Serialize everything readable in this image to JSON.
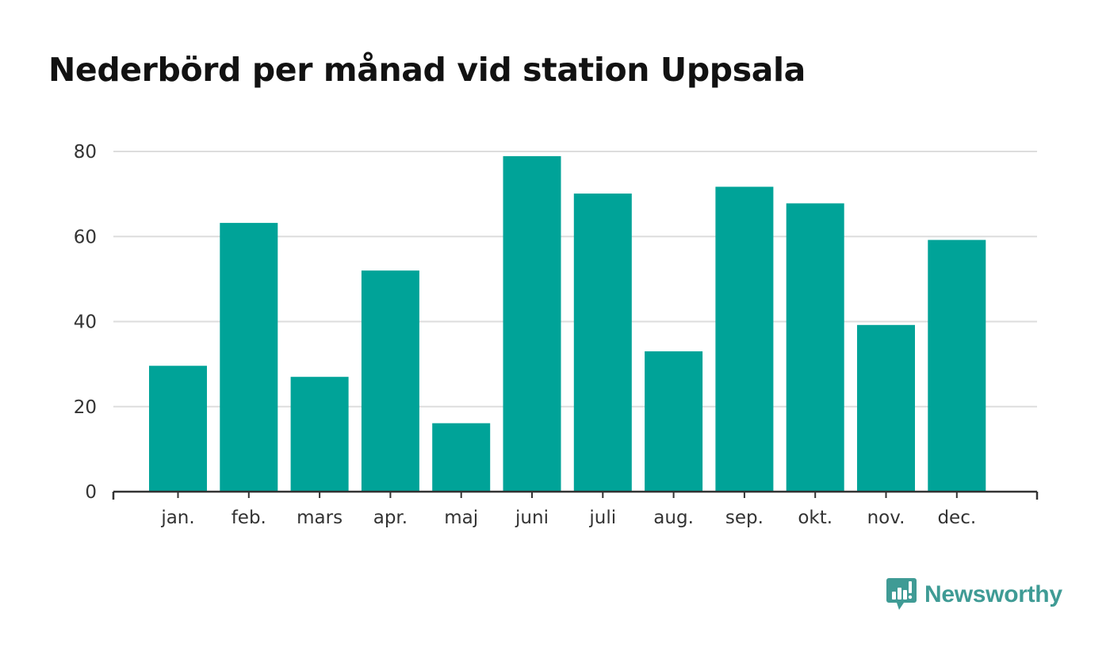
{
  "header": {
    "title": "Nederbörd per månad vid station Uppsala"
  },
  "brand": {
    "name": "Newsworthy",
    "icon": "newsworthy-logo-icon",
    "color": "#3f9b95"
  },
  "chart_data": {
    "type": "bar",
    "title": "Nederbörd per månad vid station Uppsala",
    "xlabel": "",
    "ylabel": "",
    "categories": [
      "jan.",
      "feb.",
      "mars",
      "apr.",
      "maj",
      "juni",
      "juli",
      "aug.",
      "sep.",
      "okt.",
      "nov.",
      "dec."
    ],
    "values": [
      29.6,
      63.2,
      27.0,
      52.0,
      16.1,
      78.9,
      70.1,
      33.0,
      71.7,
      67.8,
      39.2,
      59.2
    ],
    "ylim": [
      0,
      80
    ],
    "yticks": [
      0,
      20,
      40,
      60,
      80
    ],
    "grid": true,
    "bar_color": "#00a398",
    "gridline_color": "#dddddd",
    "axis_color": "#333333"
  }
}
